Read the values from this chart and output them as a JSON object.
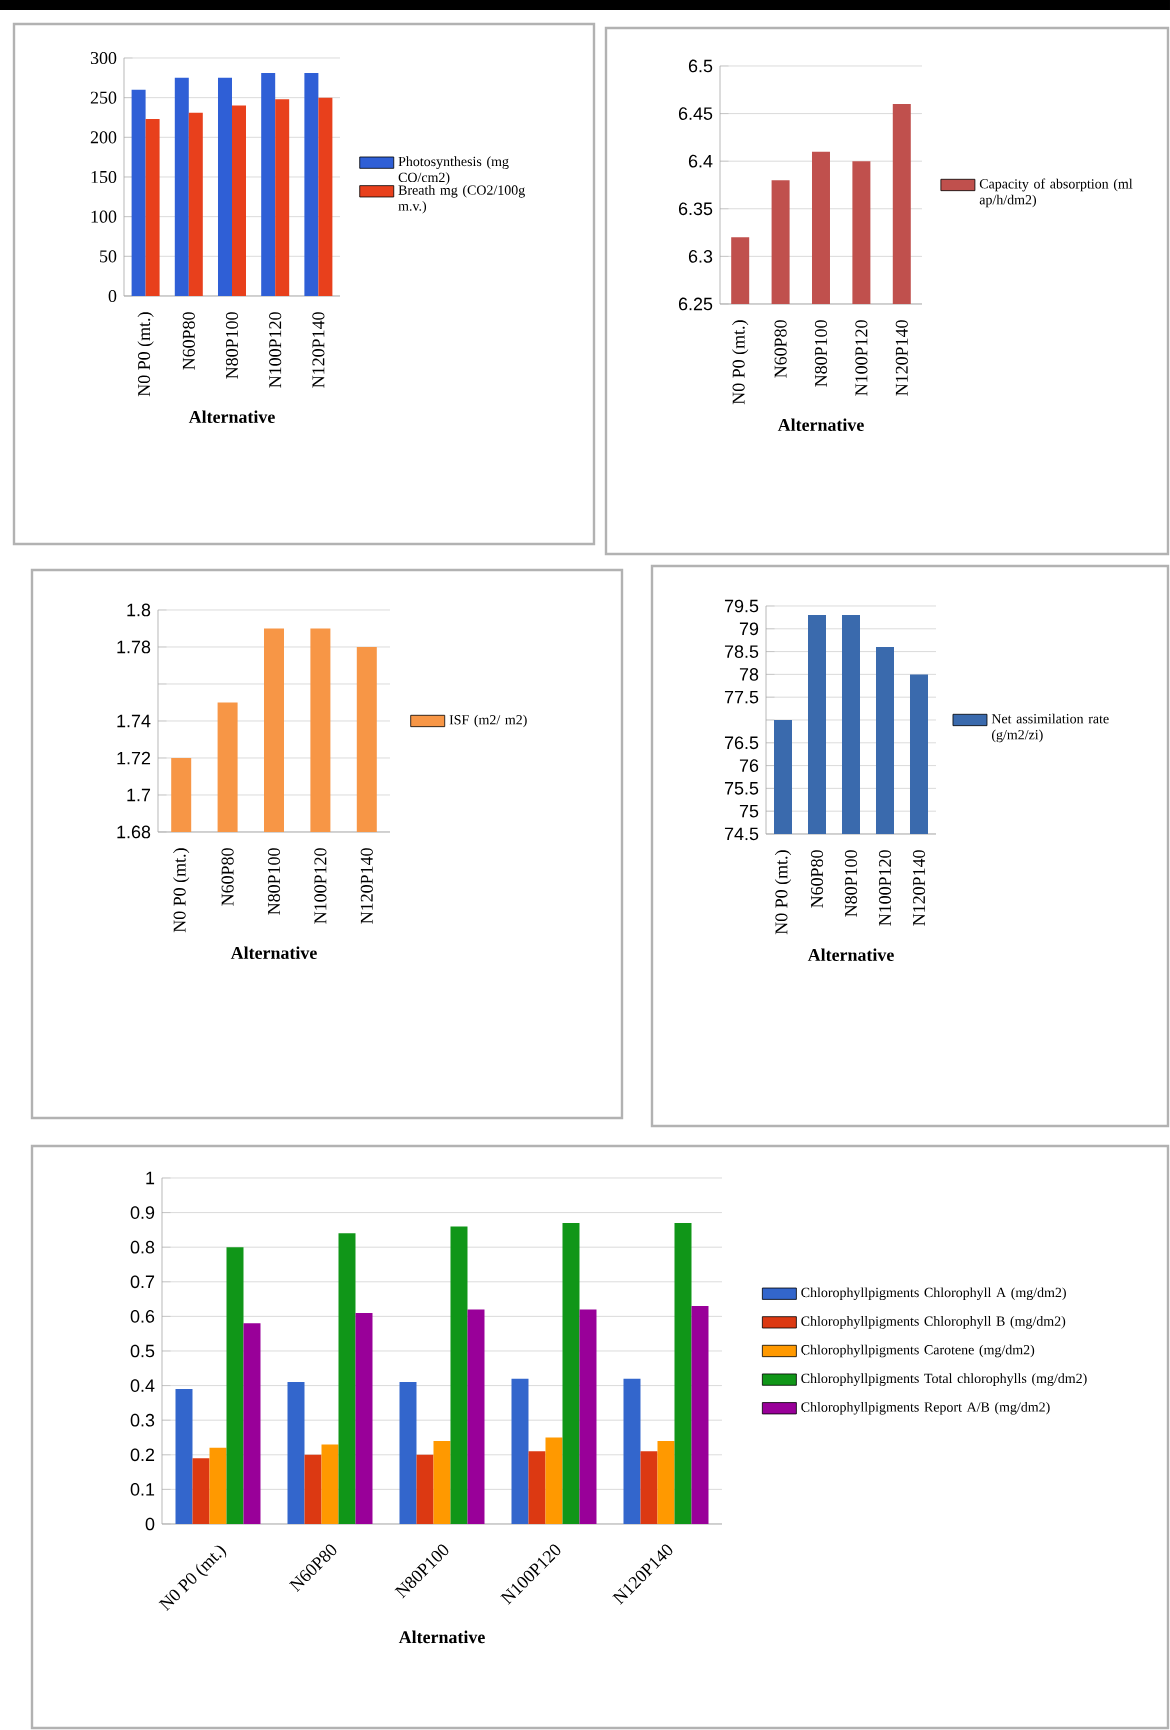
{
  "chart_data": [
    {
      "type": "bar",
      "xlabel": "Alternative",
      "categories": [
        "N0 P0 (mt.)",
        "N60P80",
        "N80P100",
        "N100P120",
        "N120P140"
      ],
      "ylim": [
        0,
        300
      ],
      "yticks": [
        0,
        50,
        100,
        150,
        200,
        250,
        300
      ],
      "grid": "y",
      "legend": "right",
      "series": [
        {
          "name": "Photosynthesis (mg CO/cm2)",
          "color": "#2f5fd6",
          "values": [
            260,
            275,
            275,
            281,
            281
          ]
        },
        {
          "name": "Breath mg (CO2/100g m.v.)",
          "color": "#e8401c",
          "values": [
            223,
            231,
            240,
            248,
            250
          ]
        }
      ]
    },
    {
      "type": "bar",
      "xlabel": "Alternative",
      "categories": [
        "N0 P0 (mt.)",
        "N60P80",
        "N80P100",
        "N100P120",
        "N120P140"
      ],
      "ylim": [
        6.25,
        6.5
      ],
      "yticks": [
        6.25,
        6.3,
        6.35,
        6.4,
        6.45,
        6.5
      ],
      "grid": "y",
      "legend": "right",
      "series": [
        {
          "name": "Capacity of absorption (ml ap/h/dm2)",
          "color": "#c0504d",
          "values": [
            6.32,
            6.38,
            6.41,
            6.4,
            6.46
          ]
        }
      ]
    },
    {
      "type": "bar",
      "xlabel": "Alternative",
      "categories": [
        "N0 P0 (mt.)",
        "N60P80",
        "N80P100",
        "N100P120",
        "N120P140"
      ],
      "ylim": [
        1.68,
        1.8
      ],
      "yticks": [
        1.68,
        1.7,
        1.72,
        1.74,
        {
          "value": 1.76,
          "label": null
        },
        1.78,
        1.8
      ],
      "grid": "y",
      "legend": "right",
      "series": [
        {
          "name": "ISF (m2/ m2)",
          "color": "#f79646",
          "values": [
            1.72,
            1.75,
            1.79,
            1.79,
            1.78
          ]
        }
      ]
    },
    {
      "type": "bar",
      "xlabel": "Alternative",
      "categories": [
        "N0 P0 (mt.)",
        "N60P80",
        "N80P100",
        "N100P120",
        "N120P140"
      ],
      "ylim": [
        74.5,
        79.5
      ],
      "yticks": [
        74.5,
        75,
        75.5,
        76,
        76.5,
        {
          "value": 77,
          "label": null
        },
        77.5,
        78,
        78.5,
        79,
        79.5
      ],
      "grid": "y",
      "legend": "right",
      "series": [
        {
          "name": "Net assimilation rate (g/m2/zi)",
          "color": "#3a6aad",
          "values": [
            77,
            79.3,
            79.3,
            78.6,
            78
          ]
        }
      ]
    },
    {
      "type": "bar",
      "xlabel": "Alternative",
      "categories": [
        "N0 P0 (mt.)",
        "N60P80",
        "N80P100",
        "N100P120",
        "N120P140"
      ],
      "ylim": [
        0,
        1
      ],
      "yticks": [
        0,
        0.1,
        0.2,
        0.3,
        0.4,
        0.5,
        0.6,
        0.7,
        0.8,
        0.9,
        1
      ],
      "grid": "y",
      "legend": "right",
      "series": [
        {
          "name": "Chlorophyllpigments Chlorophyll A (mg/dm2)",
          "color": "#3366cc",
          "values": [
            0.39,
            0.41,
            0.41,
            0.42,
            0.42
          ]
        },
        {
          "name": "Chlorophyllpigments Chlorophyll B (mg/dm2)",
          "color": "#dc3912",
          "values": [
            0.19,
            0.2,
            0.2,
            0.21,
            0.21
          ]
        },
        {
          "name": "Chlorophyllpigments Carotene (mg/dm2)",
          "color": "#ff9900",
          "values": [
            0.22,
            0.23,
            0.24,
            0.25,
            0.24
          ]
        },
        {
          "name": "Chlorophyllpigments Total chlorophylls (mg/dm2)",
          "color": "#109618",
          "values": [
            0.8,
            0.84,
            0.86,
            0.87,
            0.87
          ]
        },
        {
          "name": "Chlorophyllpigments Report A/B (mg/dm2)",
          "color": "#990099",
          "values": [
            0.58,
            0.61,
            0.62,
            0.62,
            0.63
          ]
        }
      ]
    }
  ]
}
